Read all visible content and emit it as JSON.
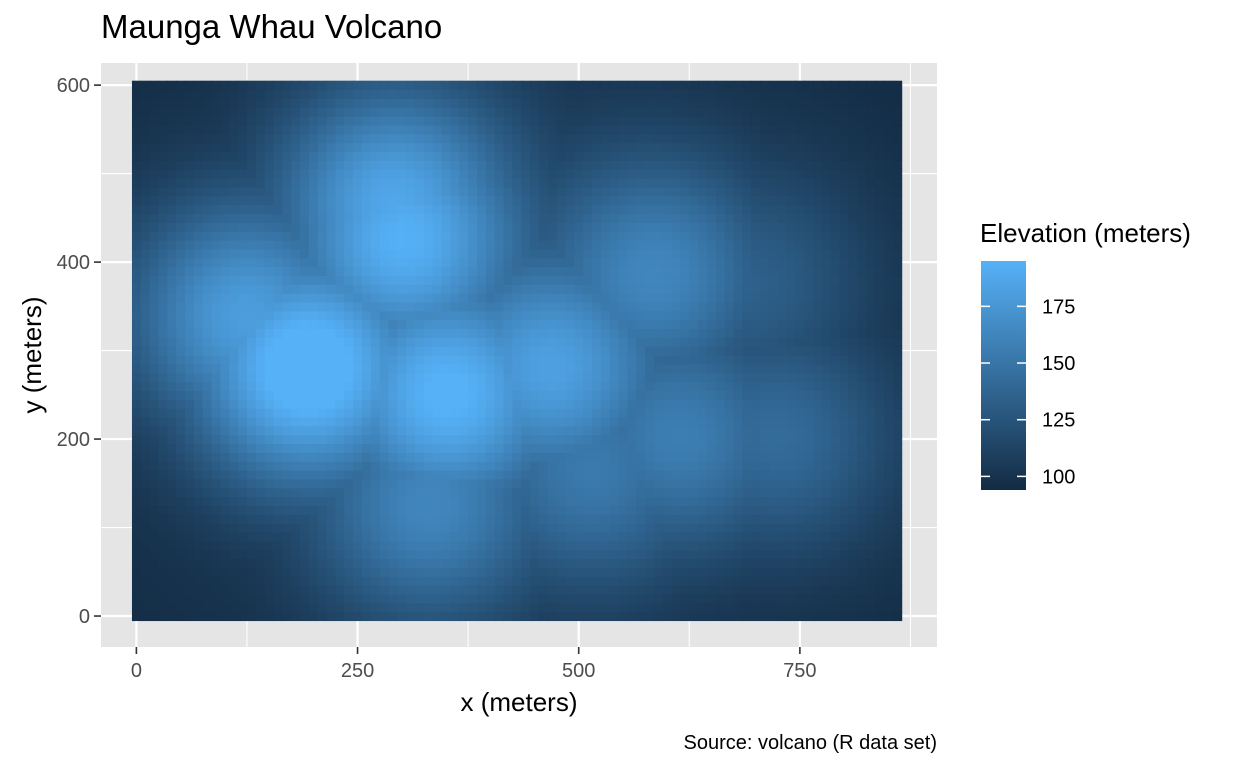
{
  "chart_data": {
    "type": "heatmap",
    "title": "Maunga Whau Volcano",
    "xlabel": "x (meters)",
    "ylabel": "y (meters)",
    "caption": "Source: volcano (R data set)",
    "xlim": [
      -40,
      905
    ],
    "ylim": [
      -35,
      625
    ],
    "x_ticks": [
      0,
      250,
      500,
      750
    ],
    "x_tick_labels": [
      "0",
      "250",
      "500",
      "750"
    ],
    "y_ticks": [
      0,
      200,
      400,
      600
    ],
    "y_tick_labels": [
      "0",
      "200",
      "400",
      "600"
    ],
    "grid": true,
    "panel_background": "#E5E5E5",
    "grid_color": "#FFFFFF",
    "cell_size": 10,
    "raster_extent": {
      "x": [
        -5,
        865
      ],
      "y": [
        -5,
        605
      ]
    },
    "fill_scale": {
      "title": "Elevation (meters)",
      "low": 94,
      "high": 195,
      "low_color": "#132B43",
      "high_color": "#56B1F7",
      "breaks": [
        100,
        125,
        150,
        175
      ],
      "break_labels": [
        "100",
        "125",
        "150",
        "175"
      ]
    },
    "elevation_peaks": [
      {
        "x": 300,
        "y": 430,
        "elevation": 180
      },
      {
        "x": 190,
        "y": 280,
        "elevation": 194
      },
      {
        "x": 120,
        "y": 340,
        "elevation": 170
      },
      {
        "x": 350,
        "y": 250,
        "elevation": 180
      },
      {
        "x": 290,
        "y": 470,
        "elevation": 175
      },
      {
        "x": 470,
        "y": 280,
        "elevation": 165
      },
      {
        "x": 590,
        "y": 390,
        "elevation": 150
      },
      {
        "x": 620,
        "y": 200,
        "elevation": 145
      },
      {
        "x": 520,
        "y": 160,
        "elevation": 140
      },
      {
        "x": 330,
        "y": 120,
        "elevation": 150
      },
      {
        "x": 730,
        "y": 200,
        "elevation": 135
      },
      {
        "x": 700,
        "y": 380,
        "elevation": 125
      },
      {
        "x": 290,
        "y": 330,
        "elevation": 140
      }
    ]
  }
}
